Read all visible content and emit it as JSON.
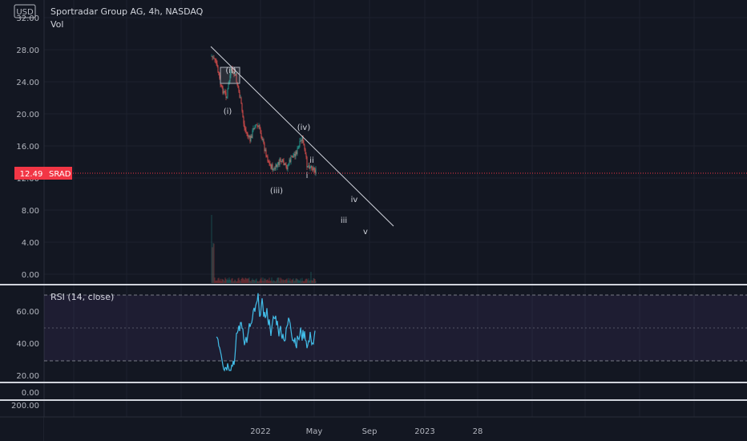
{
  "header": {
    "currency": "USD",
    "title": "Sportradar Group AG, 4h, NASDAQ",
    "volume_label": "Vol"
  },
  "price_axis": {
    "ticks": [
      "32.00",
      "28.00",
      "24.00",
      "20.00",
      "16.00",
      "12.00",
      "8.00",
      "4.00",
      "0.00"
    ]
  },
  "last_price": {
    "value": "12.49",
    "symbol": "SRAD",
    "color": "#f23645"
  },
  "wave_labels": [
    "(ii)",
    "(i)",
    "(iv)",
    "(iii)",
    "ii",
    "i",
    "iv",
    "iii",
    "v"
  ],
  "rsi": {
    "label": "RSI (14, close)",
    "ticks": [
      "60.00",
      "40.00",
      "20.00"
    ],
    "line_color": "#42bde8",
    "band_color": "#7e57c2"
  },
  "pane3": {
    "tick": "0.00"
  },
  "pane4": {
    "tick": "200.00"
  },
  "time_axis": {
    "ticks": [
      "2022",
      "May",
      "Sep",
      "2023",
      "28"
    ]
  },
  "colors": {
    "background": "#131722",
    "up_candle": "#26a69a",
    "down_candle": "#ef5350",
    "trendline": "#d1d4dc"
  }
}
